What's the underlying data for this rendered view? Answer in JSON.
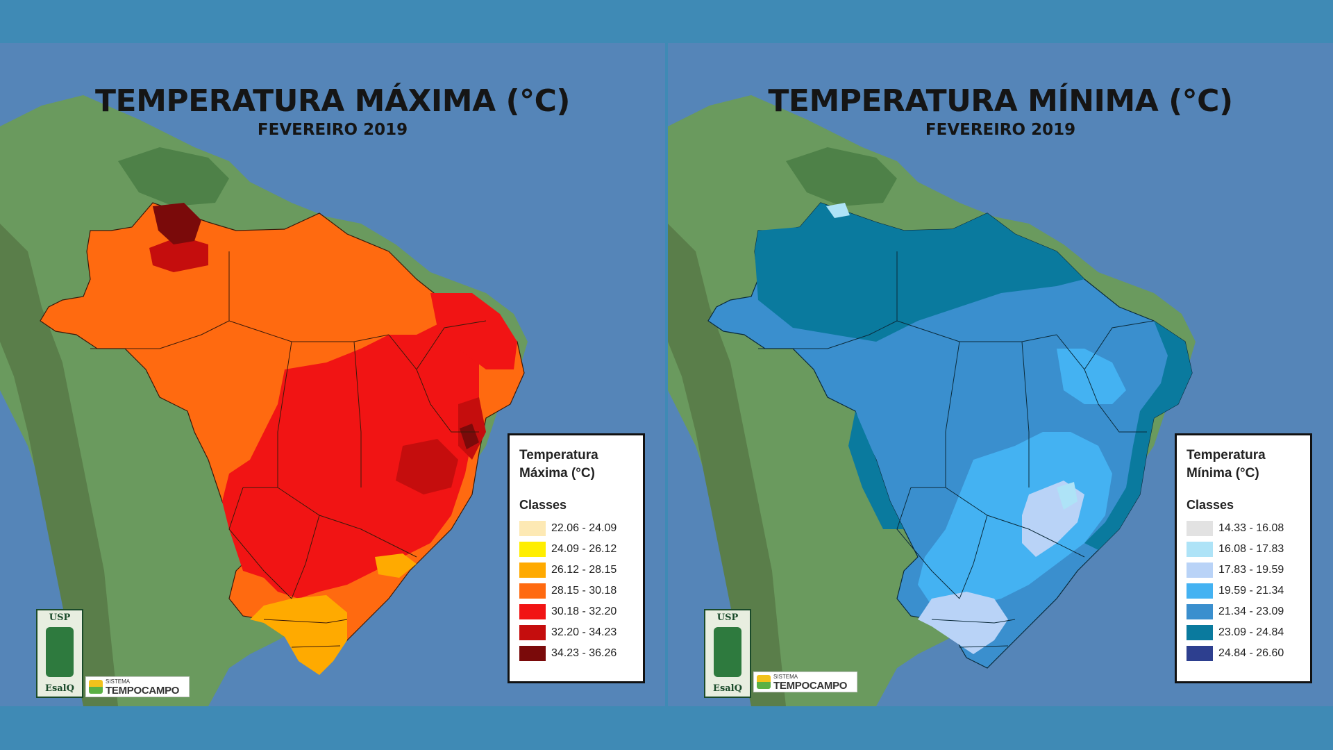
{
  "panels": [
    {
      "title": "TEMPERATURA MÁXIMA (°C)",
      "subtitle": "FEVEREIRO 2019",
      "legend": {
        "title": "Temperatura Máxima (°C)",
        "classes_label": "Classes",
        "items": [
          {
            "range": "22.06 - 24.09",
            "color": "#fde9b4"
          },
          {
            "range": "24.09 - 26.12",
            "color": "#ffee00"
          },
          {
            "range": "26.12 - 28.15",
            "color": "#ffaa00"
          },
          {
            "range": "28.15 - 30.18",
            "color": "#ff6a10"
          },
          {
            "range": "30.18 - 32.20",
            "color": "#f11414"
          },
          {
            "range": "32.20 - 34.23",
            "color": "#c50d0d"
          },
          {
            "range": "34.23 - 36.26",
            "color": "#7a0a0a"
          }
        ]
      },
      "logos": {
        "usp": "USP",
        "esalq": "EsalQ",
        "sistema": "SISTEMA",
        "tempocampo": "TEMPOCAMPO"
      }
    },
    {
      "title": "TEMPERATURA MÍNIMA (°C)",
      "subtitle": "FEVEREIRO 2019",
      "legend": {
        "title": "Temperatura Mínima (°C)",
        "classes_label": "Classes",
        "items": [
          {
            "range": "14.33 - 16.08",
            "color": "#e2e2e2"
          },
          {
            "range": "16.08 - 17.83",
            "color": "#aee3f7"
          },
          {
            "range": "17.83 - 19.59",
            "color": "#b9d3f7"
          },
          {
            "range": "19.59 - 21.34",
            "color": "#44b2f2"
          },
          {
            "range": "21.34 - 23.09",
            "color": "#3a8fce"
          },
          {
            "range": "23.09 - 24.84",
            "color": "#0a7a9e"
          },
          {
            "range": "24.84 - 26.60",
            "color": "#2d3f8f"
          }
        ]
      },
      "logos": {
        "usp": "USP",
        "esalq": "EsalQ",
        "sistema": "SISTEMA",
        "tempocampo": "TEMPOCAMPO"
      }
    }
  ]
}
